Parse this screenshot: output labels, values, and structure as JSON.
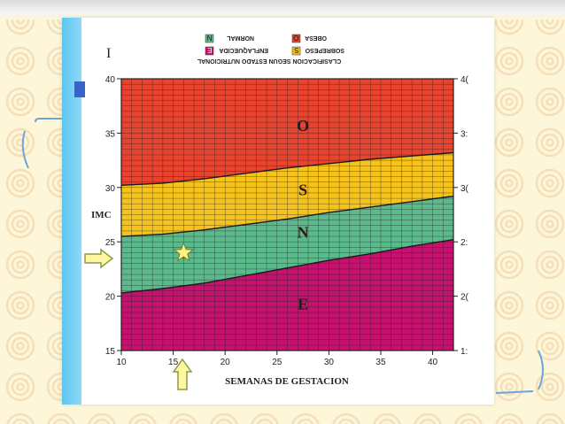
{
  "legend": {
    "title": "CLASIFICACION SEGUN ESTADO NUTRICIONAL",
    "items": [
      {
        "symbol": "N",
        "label": "NORMAL",
        "color": "#5cb98c"
      },
      {
        "symbol": "O",
        "label": "OBESA",
        "color": "#e8432e"
      },
      {
        "symbol": "E",
        "label": "ENFLAQUECIDA",
        "color": "#c4126e"
      },
      {
        "symbol": "S",
        "label": "SOBREPESO",
        "color": "#f6c21c"
      }
    ]
  },
  "panel_letter": "I",
  "chart_data": {
    "type": "area",
    "xlabel": "SEMANAS DE GESTACION",
    "ylabel": "IMC",
    "xlim": [
      10,
      42
    ],
    "ylim": [
      15,
      40
    ],
    "x_ticks": [
      10,
      15,
      20,
      25,
      30,
      35,
      40
    ],
    "y_ticks": [
      15,
      20,
      25,
      30,
      35,
      40
    ],
    "y_ticks_right": [
      "1:",
      "2(",
      "2:",
      "3(",
      "3:",
      "4("
    ],
    "grid": true,
    "x": [
      10,
      14,
      18,
      22,
      26,
      30,
      34,
      38,
      42
    ],
    "boundaries": [
      {
        "name": "E/N",
        "values": [
          20.3,
          20.7,
          21.2,
          21.9,
          22.6,
          23.3,
          23.9,
          24.6,
          25.2
        ]
      },
      {
        "name": "N/S",
        "values": [
          25.5,
          25.7,
          26.1,
          26.6,
          27.1,
          27.7,
          28.2,
          28.7,
          29.2
        ]
      },
      {
        "name": "S/O",
        "values": [
          30.2,
          30.4,
          30.8,
          31.3,
          31.8,
          32.2,
          32.6,
          32.9,
          33.2
        ]
      }
    ],
    "zones": [
      {
        "label": "E",
        "color": "#c4126e",
        "label_x": 27.5,
        "label_y": 18.8
      },
      {
        "label": "N",
        "color": "#5cb98c",
        "label_x": 27.5,
        "label_y": 25.4
      },
      {
        "label": "S",
        "color": "#f6c21c",
        "label_x": 27.5,
        "label_y": 29.3
      },
      {
        "label": "O",
        "color": "#e8432e",
        "label_x": 27.5,
        "label_y": 35.2
      }
    ],
    "marker": {
      "x": 16,
      "y": 24,
      "shape": "star",
      "color": "#fff27a"
    }
  },
  "colors": {
    "arrow_fill": "#fff7a0",
    "arrow_stroke": "#8a9a4a",
    "grid": "#222222"
  }
}
